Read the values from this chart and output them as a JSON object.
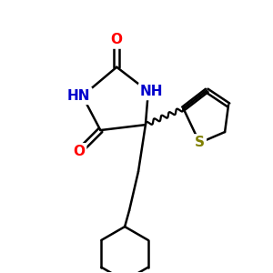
{
  "background_color": "#ffffff",
  "atom_colors": {
    "O": "#ff0000",
    "N": "#0000cc",
    "S": "#808000",
    "C": "#000000"
  },
  "bond_color": "#000000",
  "line_width": 1.8,
  "font_size_atoms": 11
}
